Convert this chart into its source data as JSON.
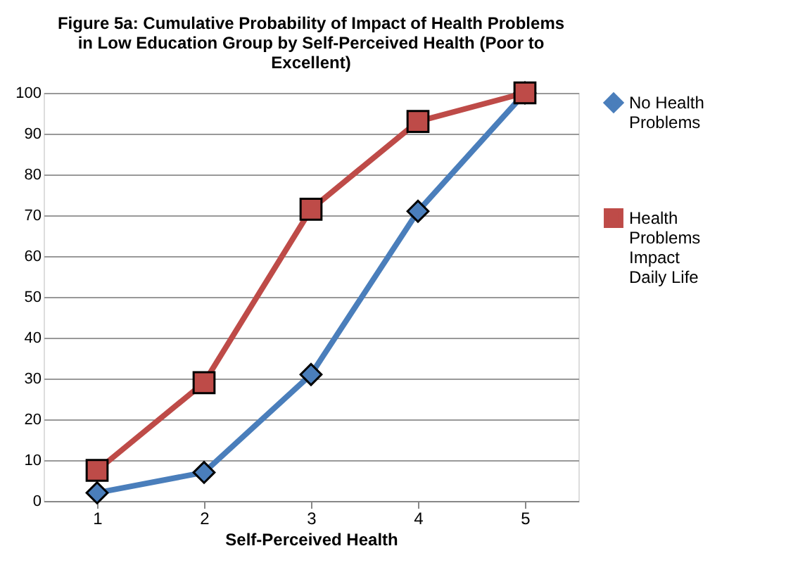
{
  "chart_data": {
    "type": "line",
    "title": "Figure 5a: Cumulative Probability of Impact of Health Problems in Low Education Group by Self-Perceived Health (Poor to Excellent)",
    "xlabel": "Self-Perceived Health",
    "categories": [
      "1",
      "2",
      "3",
      "4",
      "5"
    ],
    "ylim": [
      0,
      100
    ],
    "yticks": [
      0,
      10,
      20,
      30,
      40,
      50,
      60,
      70,
      80,
      90,
      100
    ],
    "grid": "y",
    "legend": "right",
    "line_style": "solid",
    "series": [
      {
        "name": "No Health Problems",
        "color": "#4a7ebb",
        "marker": "diamond",
        "values": [
          2,
          7,
          31,
          71,
          100
        ]
      },
      {
        "name": "Health Problems Impact Daily Life",
        "color": "#be4b48",
        "marker": "square",
        "values": [
          7.5,
          29,
          71.5,
          93,
          100
        ]
      }
    ]
  }
}
